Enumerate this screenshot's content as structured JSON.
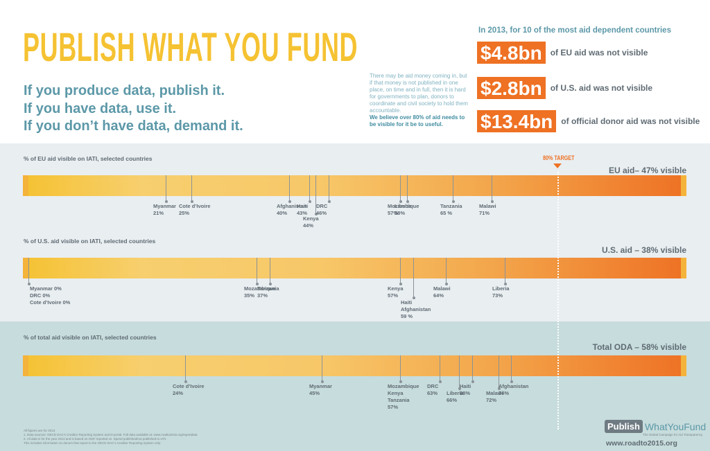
{
  "title": "PUBLISH WHAT YOU FUND",
  "taglines": [
    "If you produce data, publish it.",
    "If you have data, use it.",
    "If you don’t have data, demand it."
  ],
  "note": {
    "text": "There may be aid money coming in, but if that money is not published in one place, on time and in full, then it is hard for governments to plan, donors to coordinate and civil society to hold them accountable.",
    "bold": "We believe over 80% of aid needs to be visible for it be to useful."
  },
  "stats": {
    "header": "In 2013, for 10 of the most aid dependent countries",
    "items": [
      {
        "amount": "$4.8bn",
        "text": "of EU aid was not visible"
      },
      {
        "amount": "$2.8bn",
        "text": "of U.S. aid was not visible"
      },
      {
        "amount": "$13.4bn",
        "text": "of official donor aid was not visible"
      }
    ]
  },
  "target_label": "80% TARGET",
  "colors": {
    "orange": "#ee7124",
    "yellow": "#f5c232",
    "teal": "#5c98a8",
    "band": "#e9eef1",
    "band_total": "#c7dcdc"
  },
  "chart_data": [
    {
      "type": "bar",
      "title": "% of EU aid visible on IATI, selected countries",
      "bar_label": "EU aid– 47% visible",
      "xlim": [
        0,
        100
      ],
      "target": 80,
      "points": [
        {
          "label": "Myanmar\n21%",
          "value": 21
        },
        {
          "label": "Cote d’Ivoire\n25%",
          "value": 25
        },
        {
          "label": "Afghanistan\n40%",
          "value": 40
        },
        {
          "label": "Haiti\n43%",
          "value": 43
        },
        {
          "label": "Kenya\n44%",
          "value": 44
        },
        {
          "label": "DRC\n46%",
          "value": 46
        },
        {
          "label": "Mozambique\n57%",
          "value": 57
        },
        {
          "label": "Liberia\n58%",
          "value": 58
        },
        {
          "label": "Tanzania\n65 %",
          "value": 65
        },
        {
          "label": "Malawi\n71%",
          "value": 71
        }
      ]
    },
    {
      "type": "bar",
      "title": "% of U.S. aid visible on IATI, selected countries",
      "bar_label": "U.S. aid – 38% visible",
      "xlim": [
        0,
        100
      ],
      "target": 80,
      "points": [
        {
          "label": "Myanmar 0%\nDRC 0%\nCote d’Ivoire 0%",
          "value": 0
        },
        {
          "label": "Mozambique\n35%",
          "value": 35
        },
        {
          "label": "Tanzania\n37%",
          "value": 37
        },
        {
          "label": "Kenya\n57%",
          "value": 57
        },
        {
          "label": "Haiti\nAfghanistan\n59 %",
          "value": 59
        },
        {
          "label": "Malawi\n64%",
          "value": 64
        },
        {
          "label": "Liberia\n73%",
          "value": 73
        }
      ]
    },
    {
      "type": "bar",
      "title": "% of total aid visible on IATI, selected countries",
      "bar_label": "Total ODA – 58% visible",
      "xlim": [
        0,
        100
      ],
      "target": 80,
      "points": [
        {
          "label": "Cote d’Ivoire\n24%",
          "value": 24
        },
        {
          "label": "Myanmar\n45%",
          "value": 45
        },
        {
          "label": "Mozambique\nKenya\nTanzania\n57%",
          "value": 57
        },
        {
          "label": "DRC\n63%",
          "value": 63
        },
        {
          "label": "Liberia\n66%",
          "value": 66
        },
        {
          "label": "Haiti\n68%",
          "value": 68
        },
        {
          "label": "Malawi\n72%",
          "value": 72
        },
        {
          "label": "Afghanistan\n74%",
          "value": 74
        }
      ]
    }
  ],
  "footnotes": "All figures are for 2013\n1. Data sources: OECD DAC’s Creditor Reporting System and D-portal. Full data available at: www.roadto2015.org/reportdata\n2. All data is for the year 2013 and is based on ODF reported vs. Spend published/not published to IATI.\nThis includes information on donors that report to the OECD DAC’s Creditor Reporting System only.",
  "logo": {
    "publish": "Publish",
    "rest": "WhatYouFund",
    "sub": "The Global Campaign for Aid Transparency"
  },
  "url": "www.roadto2015.org"
}
